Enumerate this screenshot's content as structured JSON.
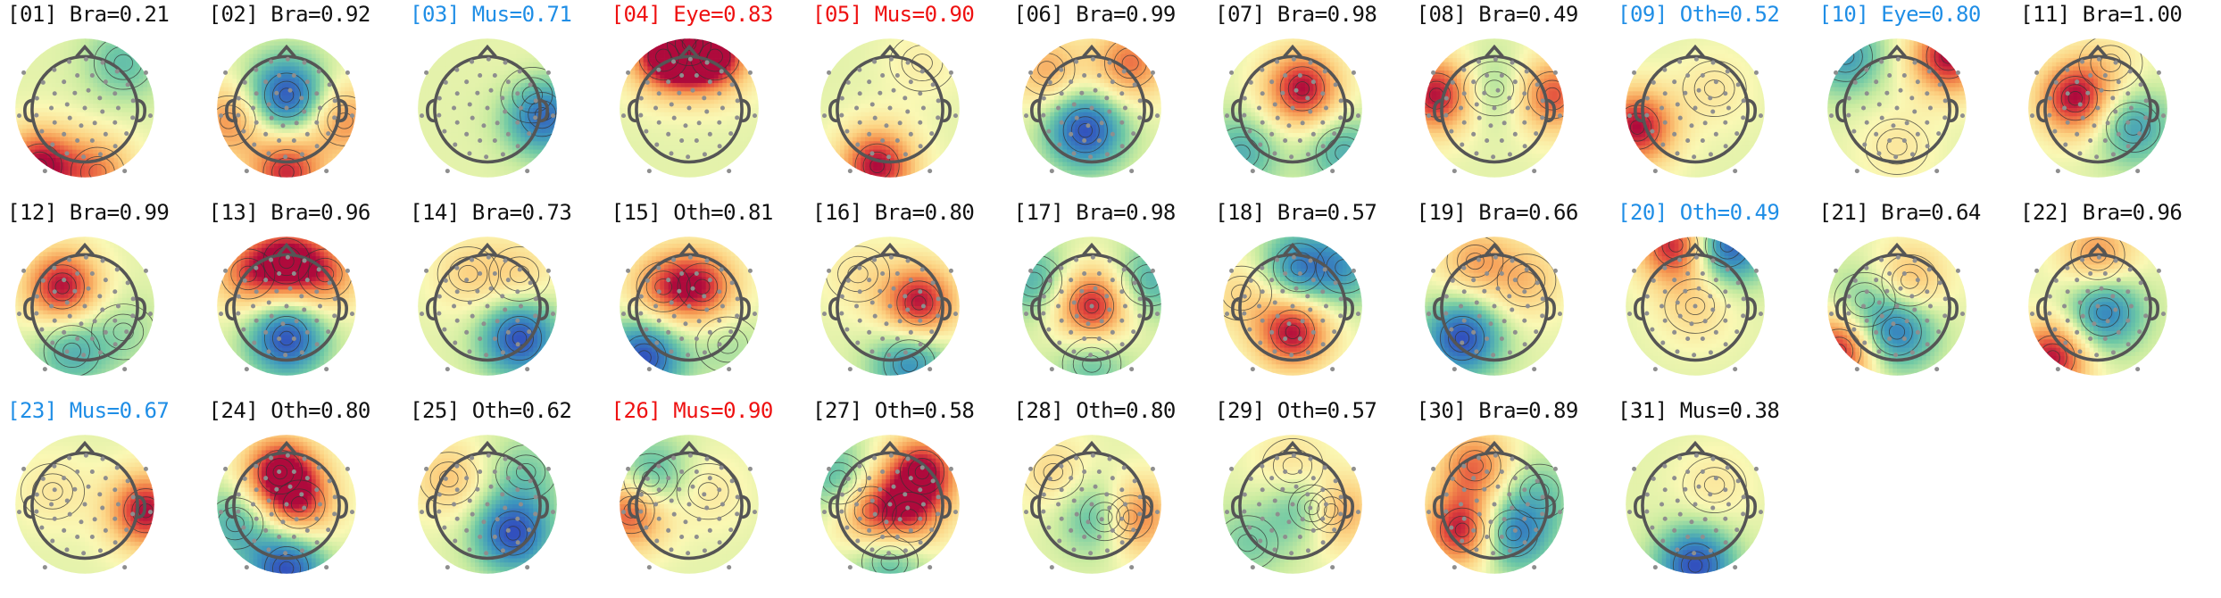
{
  "chart_data": {
    "type": "topomap-grid",
    "title": "",
    "colors": {
      "flagged_eye": "#ee1111",
      "flagged_other": "#1f8ee6",
      "normal": "#111111"
    },
    "components": [
      {
        "index": "01",
        "label": "Bra",
        "prob": "0.21",
        "flag": "normal",
        "blobs": [
          {
            "x": -0.7,
            "y": -0.9,
            "v": 1.0
          },
          {
            "x": 0.2,
            "y": -1.0,
            "v": 0.6
          },
          {
            "x": 0.6,
            "y": 0.7,
            "v": -0.4
          }
        ]
      },
      {
        "index": "02",
        "label": "Bra",
        "prob": "0.92",
        "flag": "normal",
        "blobs": [
          {
            "x": 0.0,
            "y": 0.2,
            "v": -1.0
          },
          {
            "x": 0.0,
            "y": -1.0,
            "v": 0.9
          },
          {
            "x": -0.9,
            "y": -0.2,
            "v": 0.6
          },
          {
            "x": 0.9,
            "y": -0.2,
            "v": 0.6
          }
        ]
      },
      {
        "index": "03",
        "label": "Mus",
        "prob": "0.71",
        "flag": "other",
        "blobs": [
          {
            "x": 0.85,
            "y": -0.1,
            "v": -1.0
          },
          {
            "x": 0.7,
            "y": 0.2,
            "v": 0.2
          }
        ]
      },
      {
        "index": "04",
        "label": "Eye",
        "prob": "0.83",
        "flag": "eye",
        "blobs": [
          {
            "x": 0.0,
            "y": 1.0,
            "v": 1.0
          },
          {
            "x": -0.4,
            "y": 0.8,
            "v": 0.8
          },
          {
            "x": 0.4,
            "y": 0.8,
            "v": 0.8
          }
        ]
      },
      {
        "index": "05",
        "label": "Mus",
        "prob": "0.90",
        "flag": "eye",
        "blobs": [
          {
            "x": -0.2,
            "y": -0.9,
            "v": 1.0
          },
          {
            "x": 0.5,
            "y": 0.7,
            "v": 0.15
          }
        ]
      },
      {
        "index": "06",
        "label": "Bra",
        "prob": "0.99",
        "flag": "normal",
        "blobs": [
          {
            "x": -0.1,
            "y": -0.35,
            "v": -1.0
          },
          {
            "x": 0.6,
            "y": 0.7,
            "v": 0.7
          },
          {
            "x": -0.7,
            "y": 0.6,
            "v": 0.5
          }
        ]
      },
      {
        "index": "07",
        "label": "Bra",
        "prob": "0.98",
        "flag": "normal",
        "blobs": [
          {
            "x": 0.15,
            "y": 0.3,
            "v": 1.0
          },
          {
            "x": -0.8,
            "y": -0.7,
            "v": -0.5
          },
          {
            "x": 0.8,
            "y": -0.7,
            "v": -0.5
          }
        ]
      },
      {
        "index": "08",
        "label": "Bra",
        "prob": "0.49",
        "flag": "normal",
        "blobs": [
          {
            "x": -0.9,
            "y": 0.2,
            "v": 1.0
          },
          {
            "x": 0.9,
            "y": 0.2,
            "v": 0.8
          },
          {
            "x": 0.0,
            "y": 0.3,
            "v": -0.3
          }
        ]
      },
      {
        "index": "09",
        "label": "Oth",
        "prob": "0.52",
        "flag": "other",
        "blobs": [
          {
            "x": -0.9,
            "y": -0.3,
            "v": 1.0
          },
          {
            "x": 0.3,
            "y": 0.3,
            "v": 0.2
          }
        ]
      },
      {
        "index": "10",
        "label": "Eye",
        "prob": "0.80",
        "flag": "other",
        "blobs": [
          {
            "x": 0.8,
            "y": 0.8,
            "v": 1.0
          },
          {
            "x": -0.8,
            "y": 0.8,
            "v": -0.6
          },
          {
            "x": 0.0,
            "y": -0.6,
            "v": 0.2
          }
        ]
      },
      {
        "index": "11",
        "label": "Bra",
        "prob": "1.00",
        "flag": "normal",
        "blobs": [
          {
            "x": -0.35,
            "y": 0.15,
            "v": 1.0
          },
          {
            "x": 0.55,
            "y": -0.3,
            "v": -0.6
          },
          {
            "x": 0.2,
            "y": 0.7,
            "v": 0.2
          }
        ]
      },
      {
        "index": "12",
        "label": "Bra",
        "prob": "0.99",
        "flag": "normal",
        "blobs": [
          {
            "x": -0.35,
            "y": 0.3,
            "v": 1.0
          },
          {
            "x": -0.2,
            "y": -0.7,
            "v": -0.5
          },
          {
            "x": 0.6,
            "y": -0.4,
            "v": -0.2
          }
        ]
      },
      {
        "index": "13",
        "label": "Bra",
        "prob": "0.96",
        "flag": "normal",
        "blobs": [
          {
            "x": 0.0,
            "y": -0.5,
            "v": -1.0
          },
          {
            "x": 0.0,
            "y": 0.7,
            "v": 0.9
          },
          {
            "x": -0.6,
            "y": 0.5,
            "v": 0.6
          },
          {
            "x": 0.6,
            "y": 0.5,
            "v": 0.6
          }
        ]
      },
      {
        "index": "14",
        "label": "Bra",
        "prob": "0.73",
        "flag": "normal",
        "blobs": [
          {
            "x": 0.5,
            "y": -0.5,
            "v": -1.0
          },
          {
            "x": -0.3,
            "y": 0.5,
            "v": 0.3
          },
          {
            "x": 0.5,
            "y": 0.5,
            "v": 0.3
          }
        ]
      },
      {
        "index": "15",
        "label": "Oth",
        "prob": "0.81",
        "flag": "normal",
        "blobs": [
          {
            "x": 0.2,
            "y": 0.3,
            "v": 0.8
          },
          {
            "x": -0.4,
            "y": 0.3,
            "v": 0.6
          },
          {
            "x": -0.7,
            "y": -0.8,
            "v": -1.0
          },
          {
            "x": 0.6,
            "y": -0.6,
            "v": -0.2
          }
        ]
      },
      {
        "index": "16",
        "label": "Bra",
        "prob": "0.80",
        "flag": "normal",
        "blobs": [
          {
            "x": 0.45,
            "y": 0.05,
            "v": 1.0
          },
          {
            "x": 0.3,
            "y": -0.9,
            "v": -0.7
          },
          {
            "x": -0.5,
            "y": 0.5,
            "v": 0.2
          }
        ]
      },
      {
        "index": "17",
        "label": "Bra",
        "prob": "0.98",
        "flag": "normal",
        "blobs": [
          {
            "x": 0.0,
            "y": 0.0,
            "v": 1.0
          },
          {
            "x": -0.9,
            "y": 0.4,
            "v": -0.5
          },
          {
            "x": 0.9,
            "y": 0.4,
            "v": -0.5
          },
          {
            "x": 0.0,
            "y": -0.9,
            "v": -0.4
          }
        ]
      },
      {
        "index": "18",
        "label": "Bra",
        "prob": "0.57",
        "flag": "normal",
        "blobs": [
          {
            "x": 0.0,
            "y": -0.4,
            "v": 1.0
          },
          {
            "x": 0.1,
            "y": 0.6,
            "v": -0.7
          },
          {
            "x": -0.8,
            "y": 0.2,
            "v": 0.3
          },
          {
            "x": 0.8,
            "y": 0.6,
            "v": -0.5
          }
        ]
      },
      {
        "index": "19",
        "label": "Bra",
        "prob": "0.66",
        "flag": "normal",
        "blobs": [
          {
            "x": -0.5,
            "y": -0.5,
            "v": -1.0
          },
          {
            "x": 0.5,
            "y": 0.4,
            "v": 0.4
          },
          {
            "x": -0.3,
            "y": 0.7,
            "v": 0.5
          }
        ]
      },
      {
        "index": "20",
        "label": "Oth",
        "prob": "0.49",
        "flag": "other",
        "blobs": [
          {
            "x": -0.3,
            "y": 0.95,
            "v": 1.0
          },
          {
            "x": 0.5,
            "y": 0.95,
            "v": -1.0
          },
          {
            "x": 0.0,
            "y": 0.0,
            "v": 0.3
          }
        ]
      },
      {
        "index": "21",
        "label": "Bra",
        "prob": "0.64",
        "flag": "normal",
        "blobs": [
          {
            "x": -0.9,
            "y": -0.7,
            "v": 1.0
          },
          {
            "x": 0.0,
            "y": -0.4,
            "v": -0.8
          },
          {
            "x": 0.2,
            "y": 0.4,
            "v": 0.5
          },
          {
            "x": -0.5,
            "y": 0.1,
            "v": -0.3
          }
        ]
      },
      {
        "index": "22",
        "label": "Bra",
        "prob": "0.96",
        "flag": "normal",
        "blobs": [
          {
            "x": 0.1,
            "y": -0.1,
            "v": -0.8
          },
          {
            "x": -0.7,
            "y": -0.8,
            "v": 1.0
          },
          {
            "x": 0.0,
            "y": 0.8,
            "v": 0.6
          }
        ]
      },
      {
        "index": "23",
        "label": "Mus",
        "prob": "0.67",
        "flag": "other",
        "blobs": [
          {
            "x": 0.95,
            "y": -0.1,
            "v": 1.0
          },
          {
            "x": -0.5,
            "y": 0.2,
            "v": 0.2
          }
        ]
      },
      {
        "index": "24",
        "label": "Oth",
        "prob": "0.80",
        "flag": "normal",
        "blobs": [
          {
            "x": -0.1,
            "y": 0.5,
            "v": 1.0
          },
          {
            "x": 0.2,
            "y": 0.0,
            "v": 0.7
          },
          {
            "x": 0.0,
            "y": -1.0,
            "v": -1.0
          },
          {
            "x": -0.8,
            "y": -0.3,
            "v": -0.5
          }
        ]
      },
      {
        "index": "25",
        "label": "Oth",
        "prob": "0.62",
        "flag": "normal",
        "blobs": [
          {
            "x": 0.4,
            "y": -0.45,
            "v": -1.0
          },
          {
            "x": -0.6,
            "y": 0.4,
            "v": 0.4
          },
          {
            "x": 0.6,
            "y": 0.5,
            "v": -0.3
          }
        ]
      },
      {
        "index": "26",
        "label": "Mus",
        "prob": "0.90",
        "flag": "eye",
        "blobs": [
          {
            "x": -0.9,
            "y": -0.1,
            "v": 0.9
          },
          {
            "x": -0.6,
            "y": 0.4,
            "v": -0.6
          },
          {
            "x": 0.3,
            "y": 0.2,
            "v": 0.2
          }
        ]
      },
      {
        "index": "27",
        "label": "Oth",
        "prob": "0.58",
        "flag": "normal",
        "blobs": [
          {
            "x": 0.5,
            "y": 0.5,
            "v": 1.0
          },
          {
            "x": -0.3,
            "y": -0.1,
            "v": 0.7
          },
          {
            "x": 0.3,
            "y": -0.2,
            "v": 0.6
          },
          {
            "x": -0.8,
            "y": 0.4,
            "v": -0.5
          },
          {
            "x": 0.0,
            "y": -0.9,
            "v": -0.5
          }
        ]
      },
      {
        "index": "28",
        "label": "Oth",
        "prob": "0.80",
        "flag": "normal",
        "blobs": [
          {
            "x": 0.6,
            "y": -0.2,
            "v": 1.0
          },
          {
            "x": 0.2,
            "y": -0.2,
            "v": -0.8
          },
          {
            "x": -0.6,
            "y": 0.5,
            "v": 0.3
          }
        ]
      },
      {
        "index": "29",
        "label": "Oth",
        "prob": "0.57",
        "flag": "normal",
        "blobs": [
          {
            "x": 0.6,
            "y": -0.1,
            "v": 1.0
          },
          {
            "x": 0.3,
            "y": -0.05,
            "v": -0.9
          },
          {
            "x": -0.7,
            "y": -0.6,
            "v": -0.3
          },
          {
            "x": 0.0,
            "y": 0.6,
            "v": 0.3
          }
        ]
      },
      {
        "index": "30",
        "label": "Bra",
        "prob": "0.89",
        "flag": "normal",
        "blobs": [
          {
            "x": -0.5,
            "y": -0.4,
            "v": 1.0
          },
          {
            "x": 0.3,
            "y": -0.45,
            "v": -0.8
          },
          {
            "x": -0.3,
            "y": 0.6,
            "v": 0.7
          },
          {
            "x": 0.7,
            "y": 0.2,
            "v": -0.3
          }
        ]
      },
      {
        "index": "31",
        "label": "Mus",
        "prob": "0.38",
        "flag": "normal",
        "blobs": [
          {
            "x": 0.0,
            "y": -0.95,
            "v": -1.0
          },
          {
            "x": 0.3,
            "y": 0.3,
            "v": 0.2
          }
        ]
      }
    ]
  }
}
